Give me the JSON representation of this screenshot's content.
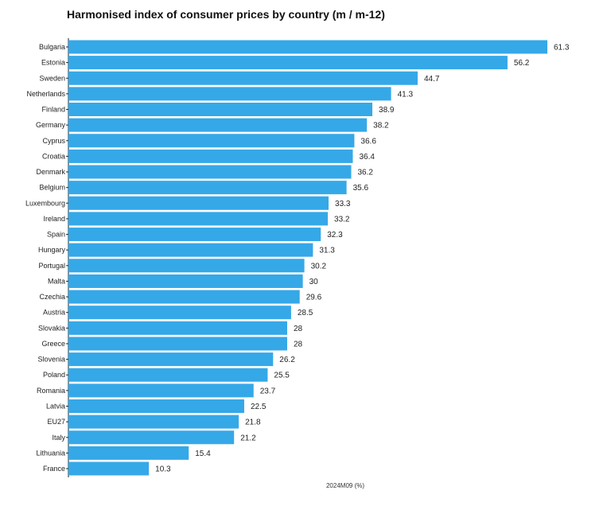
{
  "chart_data": {
    "type": "bar",
    "orientation": "horizontal",
    "title": "Harmonised index of consumer prices by country (m / m-12)",
    "xlabel": "2024M09 (%)",
    "ylabel": "",
    "categories": [
      "Bulgaria",
      "Estonia",
      "Sweden",
      "Netherlands",
      "Finland",
      "Germany",
      "Cyprus",
      "Croatia",
      "Denmark",
      "Belgium",
      "Luxembourg",
      "Ireland",
      "Spain",
      "Hungary",
      "Portugal",
      "Malta",
      "Czechia",
      "Austria",
      "Slovakia",
      "Greece",
      "Slovenia",
      "Poland",
      "Romania",
      "Latvia",
      "EU27",
      "Italy",
      "Lithuania",
      "France"
    ],
    "values": [
      61.3,
      56.2,
      44.7,
      41.3,
      38.9,
      38.2,
      36.6,
      36.4,
      36.2,
      35.6,
      33.3,
      33.2,
      32.3,
      31.3,
      30.2,
      30,
      29.6,
      28.5,
      28,
      28,
      26.2,
      25.5,
      23.7,
      22.5,
      21.8,
      21.2,
      15.4,
      10.3
    ],
    "value_labels": [
      "61.3",
      "56.2",
      "44.7",
      "41.3",
      "38.9",
      "38.2",
      "36.6",
      "36.4",
      "36.2",
      "35.6",
      "33.3",
      "33.2",
      "32.3",
      "31.3",
      "30.2",
      "30",
      "29.6",
      "28.5",
      "28",
      "28",
      "26.2",
      "25.5",
      "23.7",
      "22.5",
      "21.8",
      "21.2",
      "15.4",
      "10.3"
    ],
    "xlim": [
      0,
      61.3
    ],
    "bar_color": "#35a8e8",
    "grid": false,
    "legend": "none"
  }
}
